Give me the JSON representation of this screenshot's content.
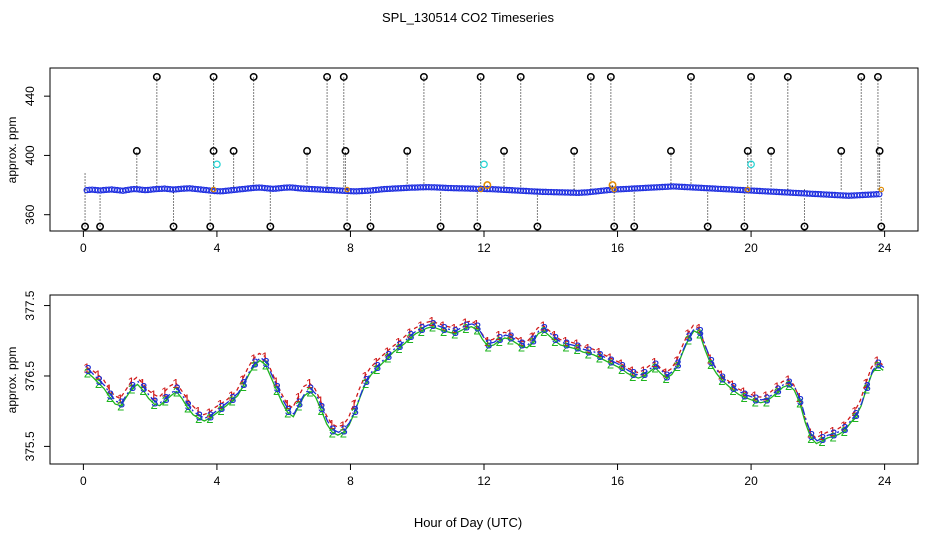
{
  "figure": {
    "title": "SPL_130514  CO2 Timeseries",
    "xlabel": "Hour of Day (UTC)"
  },
  "chart_data": [
    {
      "type": "scatter",
      "title": "SPL_130514  CO2 Timeseries",
      "xlabel": "",
      "ylabel": "approx. ppm",
      "xlim": [
        -1,
        25
      ],
      "ylim": [
        349,
        459
      ],
      "xticks": [
        0,
        4,
        8,
        12,
        16,
        20,
        24
      ],
      "yticks": [
        360,
        400,
        440
      ],
      "colors": {
        "main": "#1f2fe0",
        "outlier": "#000000",
        "cyan": "#22d3d3",
        "orange": "#e08a00"
      },
      "baseline_ppm": 377,
      "main_points": {
        "x_start": 0.1,
        "x_end": 23.9,
        "step": 0.0833,
        "values": [
          376.6,
          376.8,
          376.9,
          376.7,
          376.5,
          376.4,
          376.6,
          376.8,
          376.9,
          377.0,
          376.8,
          376.6,
          376.4,
          376.2,
          376.5,
          376.8,
          377.1,
          377.3,
          377.2,
          377.0,
          376.8,
          376.6,
          376.7,
          376.9,
          377.1,
          377.3,
          377.4,
          377.5,
          377.6,
          377.4,
          377.2,
          377.0,
          377.1,
          377.3,
          377.5,
          377.6,
          377.7,
          377.8,
          377.6,
          377.4,
          377.2,
          377.0,
          376.8,
          376.6,
          376.4,
          376.2,
          376.0,
          375.9,
          375.8,
          375.9,
          376.1,
          376.3,
          376.5,
          376.7,
          376.9,
          377.1,
          377.3,
          377.5,
          377.7,
          377.9,
          378.1,
          378.2,
          378.3,
          378.2,
          378.0,
          377.8,
          377.6,
          377.5,
          377.6,
          377.8,
          378.0,
          378.2,
          378.3,
          378.4,
          378.3,
          378.1,
          377.9,
          377.7,
          377.6,
          377.5,
          377.4,
          377.3,
          377.2,
          377.1,
          377.0,
          376.9,
          376.8,
          376.7,
          376.6,
          376.5,
          376.4,
          376.3,
          376.2,
          376.1,
          376.0,
          375.9,
          375.8,
          375.8,
          375.9,
          376.0,
          376.1,
          376.2,
          376.3,
          376.5,
          376.7,
          376.9,
          377.1,
          377.3,
          377.4,
          377.5,
          377.6,
          377.7,
          377.8,
          377.9,
          378.0,
          378.1,
          378.2,
          378.3,
          378.3,
          378.4,
          378.5,
          378.5,
          378.6,
          378.6,
          378.5,
          378.5,
          378.4,
          378.3,
          378.2,
          378.1,
          378.0,
          378.0,
          377.9,
          377.9,
          377.8,
          377.8,
          377.7,
          377.7,
          377.6,
          377.6,
          377.5,
          377.5,
          377.4,
          377.4,
          377.3,
          377.3,
          377.2,
          377.1,
          377.0,
          376.9,
          376.8,
          376.7,
          376.6,
          376.5,
          376.4,
          376.3,
          376.2,
          376.1,
          376.0,
          375.9,
          375.8,
          375.7,
          375.6,
          375.5,
          375.4,
          375.4,
          375.3,
          375.3,
          375.2,
          375.2,
          375.1,
          375.1,
          375.0,
          375.0,
          374.9,
          374.9,
          374.8,
          374.8,
          374.9,
          375.0,
          375.1,
          375.3,
          375.5,
          375.7,
          375.9,
          376.1,
          376.3,
          376.5,
          376.7,
          376.9,
          377.0,
          377.1,
          377.2,
          377.3,
          377.4,
          377.5,
          377.6,
          377.7,
          377.8,
          377.9,
          378.0,
          378.1,
          378.2,
          378.3,
          378.4,
          378.5,
          378.6,
          378.7,
          378.8,
          378.9,
          379.0,
          379.1,
          379.0,
          378.9,
          378.8,
          378.7,
          378.6,
          378.5,
          378.4,
          378.3,
          378.2,
          378.1,
          378.0,
          377.9,
          377.8,
          377.7,
          377.6,
          377.5,
          377.4,
          377.3,
          377.2,
          377.1,
          377.0,
          376.9,
          376.8,
          376.7,
          376.6,
          376.5,
          376.4,
          376.3,
          376.2,
          376.1,
          376.0,
          375.9,
          375.8,
          375.7,
          375.6,
          375.5,
          375.4,
          375.3,
          375.2,
          375.1,
          375.0,
          374.9,
          374.8,
          374.7,
          374.6,
          374.5,
          374.4,
          374.3,
          374.2,
          374.1,
          374.0,
          373.9,
          373.8,
          373.7,
          373.6,
          373.5,
          373.4,
          373.3,
          373.2,
          373.1,
          373.0,
          372.9,
          372.8,
          372.9,
          373.0,
          373.1,
          373.2,
          373.3,
          373.4,
          373.5,
          373.6,
          373.7,
          373.8,
          373.9,
          374.0,
          374.1,
          374.2,
          374.3,
          374.4,
          374.5,
          374.6,
          374.7,
          374.8
        ]
      },
      "outliers": {
        "x": [
          0.05,
          0.5,
          1.6,
          2.2,
          2.7,
          3.8,
          3.9,
          3.9,
          4.5,
          5.1,
          5.6,
          6.7,
          7.3,
          7.8,
          7.85,
          7.9,
          8.6,
          9.7,
          10.2,
          10.7,
          11.8,
          11.9,
          12.1,
          12.6,
          13.1,
          13.6,
          14.7,
          15.2,
          15.8,
          15.85,
          15.9,
          16.5,
          17.6,
          18.2,
          18.7,
          19.8,
          19.9,
          20.0,
          20.6,
          21.1,
          21.6,
          22.7,
          23.3,
          23.8,
          23.85,
          23.9
        ],
        "y": [
          352,
          352,
          403,
          453,
          352,
          352,
          403,
          453,
          403,
          453,
          352,
          403,
          453,
          453,
          403,
          352,
          352,
          403,
          453,
          352,
          352,
          453,
          380,
          403,
          453,
          352,
          403,
          453,
          453,
          380,
          352,
          352,
          403,
          453,
          352,
          352,
          403,
          453,
          403,
          453,
          352,
          403,
          453,
          453,
          403,
          352
        ]
      },
      "cyan_points": {
        "x": [
          4.0,
          12.0,
          20.0
        ],
        "y": [
          394,
          394,
          394
        ]
      }
    },
    {
      "type": "line",
      "title": "",
      "xlabel": "Hour of Day (UTC)",
      "ylabel": "approx. ppm",
      "xlim": [
        -1,
        25
      ],
      "ylim": [
        375.25,
        377.65
      ],
      "xticks": [
        0,
        4,
        8,
        12,
        16,
        20,
        24
      ],
      "yticks": [
        375.5,
        376.5,
        377.5
      ],
      "step": 0.1667,
      "series": [
        {
          "name": "1",
          "symbol": "1",
          "color": "#d11c1c",
          "dash": "4,3",
          "x_start": 0.1,
          "values": [
            376.62,
            376.58,
            376.52,
            376.45,
            376.32,
            376.22,
            376.18,
            376.3,
            376.42,
            376.48,
            376.4,
            376.3,
            376.24,
            376.2,
            376.28,
            376.36,
            376.4,
            376.3,
            376.18,
            376.08,
            376.0,
            375.95,
            375.98,
            376.05,
            376.1,
            376.15,
            376.22,
            376.3,
            376.45,
            376.62,
            376.75,
            376.82,
            376.78,
            376.6,
            376.42,
            376.25,
            376.1,
            376.05,
            376.2,
            376.35,
            376.4,
            376.32,
            376.15,
            375.95,
            375.82,
            375.78,
            375.8,
            375.9,
            376.1,
            376.32,
            376.5,
            376.62,
            376.7,
            376.78,
            376.85,
            376.92,
            376.98,
            377.05,
            377.12,
            377.18,
            377.22,
            377.26,
            377.28,
            377.25,
            377.22,
            377.2,
            377.18,
            377.22,
            377.26,
            377.28,
            377.24,
            377.1,
            377.0,
            377.02,
            377.08,
            377.12,
            377.1,
            377.05,
            377.0,
            376.98,
            377.06,
            377.18,
            377.22,
            377.15,
            377.08,
            377.02,
            377.0,
            376.98,
            376.96,
            376.92,
            376.9,
            376.88,
            376.84,
            376.8,
            376.76,
            376.72,
            376.68,
            376.62,
            376.58,
            376.55,
            376.58,
            376.64,
            376.7,
            376.62,
            376.55,
            376.6,
            376.72,
            376.92,
            377.1,
            377.22,
            377.18,
            376.95,
            376.75,
            376.62,
            376.52,
            376.45,
            376.38,
            376.32,
            376.28,
            376.25,
            376.22,
            376.2,
            376.22,
            376.28,
            376.35,
            376.42,
            376.45,
            376.38,
            376.2,
            375.92,
            375.7,
            375.62,
            375.66,
            375.7,
            375.72,
            375.75,
            375.8,
            375.9,
            376.0,
            376.15,
            376.4,
            376.62,
            376.72,
            376.66
          ]
        },
        {
          "name": "2",
          "symbol": "2",
          "color": "#1fb51f",
          "dash": "",
          "x_start": 0.12,
          "values": [
            376.55,
            376.48,
            376.4,
            376.32,
            376.2,
            376.1,
            376.08,
            376.2,
            376.32,
            376.38,
            376.3,
            376.18,
            376.1,
            376.08,
            376.15,
            376.22,
            376.28,
            376.18,
            376.05,
            375.95,
            375.9,
            375.86,
            375.9,
            375.96,
            376.02,
            376.08,
            376.15,
            376.22,
            376.36,
            376.52,
            376.65,
            376.72,
            376.66,
            376.48,
            376.3,
            376.12,
            375.98,
            375.92,
            376.08,
            376.22,
            376.28,
            376.2,
            376.02,
            375.82,
            375.7,
            375.66,
            375.7,
            375.8,
            375.98,
            376.2,
            376.4,
            376.52,
            376.6,
            376.68,
            376.76,
            376.84,
            376.9,
            376.96,
            377.04,
            377.1,
            377.14,
            377.18,
            377.2,
            377.17,
            377.14,
            377.12,
            377.1,
            377.14,
            377.18,
            377.2,
            377.16,
            377.02,
            376.92,
            376.94,
            377.0,
            377.04,
            377.02,
            376.97,
            376.92,
            376.9,
            376.98,
            377.1,
            377.14,
            377.07,
            377.0,
            376.94,
            376.92,
            376.9,
            376.88,
            376.84,
            376.82,
            376.8,
            376.76,
            376.72,
            376.68,
            376.64,
            376.6,
            376.54,
            376.5,
            376.47,
            376.5,
            376.56,
            376.62,
            376.54,
            376.47,
            376.52,
            376.64,
            376.84,
            377.02,
            377.14,
            377.1,
            376.87,
            376.67,
            376.54,
            376.44,
            376.37,
            376.3,
            376.24,
            376.2,
            376.17,
            376.14,
            376.12,
            376.14,
            376.2,
            376.27,
            376.34,
            376.37,
            376.3,
            376.12,
            375.84,
            375.62,
            375.54,
            375.58,
            375.62,
            375.64,
            375.67,
            375.72,
            375.82,
            375.92,
            376.07,
            376.32,
            376.54,
            376.64,
            376.58
          ]
        },
        {
          "name": "3",
          "symbol": "3",
          "color": "#1c2fd6",
          "dash": "8,3,2,3",
          "x_start": 0.14,
          "values": [
            376.6,
            376.52,
            376.44,
            376.36,
            376.24,
            376.14,
            376.12,
            376.24,
            376.36,
            376.42,
            376.34,
            376.22,
            376.14,
            376.12,
            376.19,
            376.26,
            376.32,
            376.22,
            376.09,
            375.99,
            375.94,
            375.9,
            375.94,
            376.0,
            376.06,
            376.12,
            376.19,
            376.26,
            376.4,
            376.56,
            376.69,
            376.76,
            376.7,
            376.52,
            376.34,
            376.16,
            376.02,
            375.96,
            376.12,
            376.26,
            376.32,
            376.24,
            376.06,
            375.86,
            375.74,
            375.7,
            375.74,
            375.84,
            376.02,
            376.24,
            376.44,
            376.56,
            376.64,
            376.72,
            376.8,
            376.88,
            376.94,
            377.0,
            377.08,
            377.14,
            377.18,
            377.22,
            377.24,
            377.21,
            377.18,
            377.16,
            377.14,
            377.18,
            377.22,
            377.24,
            377.2,
            377.06,
            376.96,
            376.98,
            377.04,
            377.08,
            377.06,
            377.01,
            376.96,
            376.94,
            377.02,
            377.14,
            377.18,
            377.11,
            377.04,
            376.98,
            376.96,
            376.94,
            376.92,
            376.88,
            376.86,
            376.84,
            376.8,
            376.76,
            376.72,
            376.68,
            376.64,
            376.58,
            376.54,
            376.51,
            376.54,
            376.6,
            376.66,
            376.58,
            376.51,
            376.56,
            376.68,
            376.88,
            377.06,
            377.18,
            377.14,
            376.91,
            376.71,
            376.58,
            376.48,
            376.41,
            376.34,
            376.28,
            376.24,
            376.21,
            376.18,
            376.16,
            376.18,
            376.24,
            376.31,
            376.38,
            376.41,
            376.34,
            376.16,
            375.88,
            375.66,
            375.58,
            375.62,
            375.66,
            375.68,
            375.71,
            375.76,
            375.86,
            375.96,
            376.11,
            376.36,
            376.58,
            376.68,
            376.62
          ]
        }
      ]
    }
  ]
}
